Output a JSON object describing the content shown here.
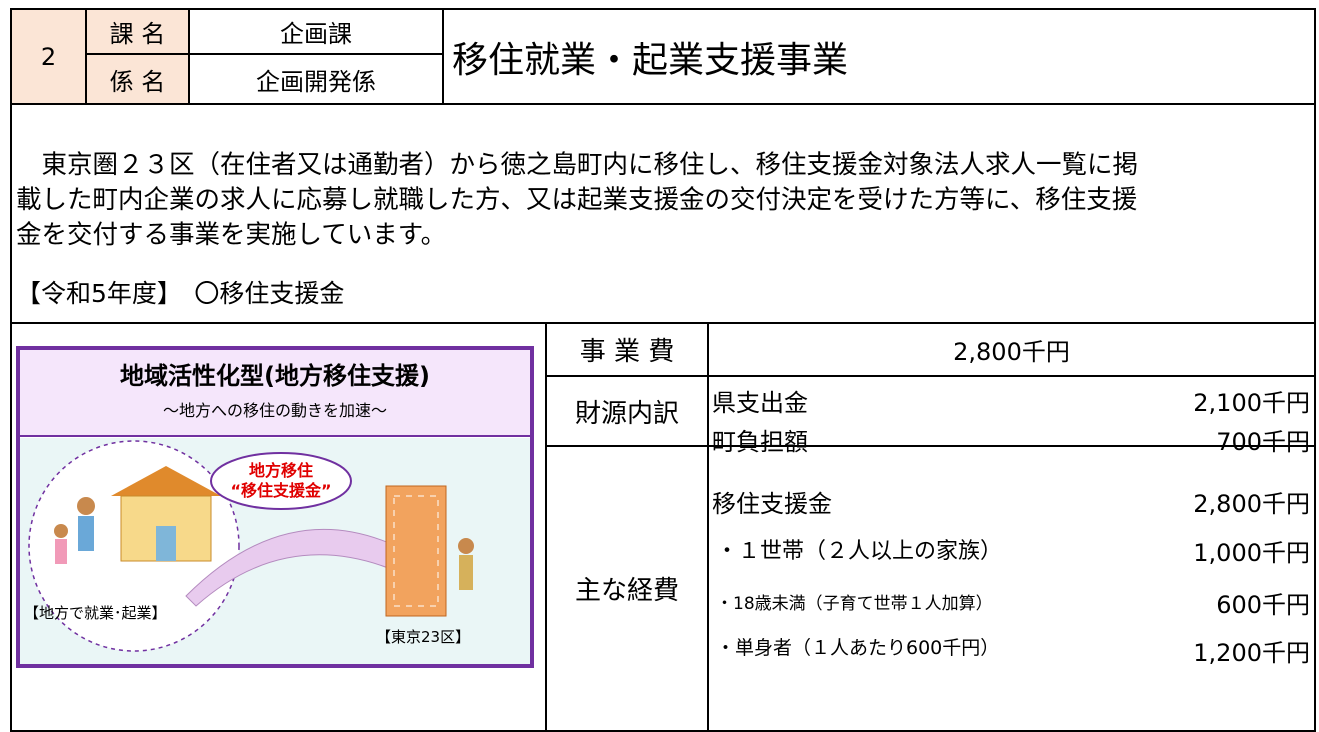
{
  "header": {
    "number": "2",
    "section_labels": [
      "課 名",
      "係 名"
    ],
    "section_values": [
      "企画課",
      "企画開発係"
    ],
    "title": "移住就業・起業支援事業"
  },
  "description": {
    "lines": [
      "　東京圏２３区（在住者又は通勤者）から徳之島町内に移住し、移住支援金対象法人求人一覧に掲",
      "載した町内企業の求人に応募し就職した方、又は起業支援金の交付決定を受けた方等に、移住支援",
      "金を交付する事業を実施しています。"
    ],
    "year_note": "【令和5年度】　〇移住支援金"
  },
  "illustration": {
    "title": "地域活性化型(地方移住支援)",
    "subtitle": "～地方への移住の動きを加速～",
    "bubble": [
      "地方移住",
      "“移住支援金”"
    ],
    "left_label": "【地方で就業･起業】",
    "right_label": "【東京23区】"
  },
  "budget": {
    "total_label": "事 業 費",
    "total": "2,800千円",
    "funding_label": "財源内訳",
    "funding": [
      [
        "県支出金",
        "2,100千円"
      ],
      [
        "町負担額",
        "700千円"
      ]
    ],
    "expense_label": "主な経費",
    "expenses": [
      [
        "移住支援金",
        "2,800千円"
      ],
      [
        "・１世帯（２人以上の家族）",
        "1,000千円"
      ],
      [
        "・18歳未満（子育て世帯１人加算）",
        "600千円"
      ],
      [
        "・単身者（１人あたり600千円）",
        "1,200千円"
      ]
    ]
  }
}
